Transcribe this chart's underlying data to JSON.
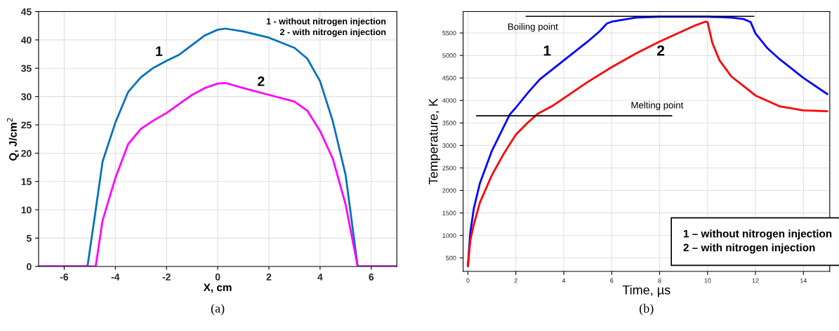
{
  "chart_data": [
    {
      "type": "line",
      "xlabel": "X, cm",
      "ylabel": "Q, J/cm$^{2}$",
      "xlim": [
        -7,
        7
      ],
      "ylim": [
        0,
        45
      ],
      "xticks": [
        -6,
        -4,
        -2,
        0,
        2,
        4,
        6
      ],
      "yticks": [
        0,
        5,
        10,
        15,
        20,
        25,
        30,
        35,
        40,
        45
      ],
      "grid": true,
      "series": [
        {
          "color": "#0072bd",
          "x": [
            -7,
            -5.09,
            -4.8,
            -4.5,
            -4,
            -3.5,
            -3,
            -2.5,
            -2,
            -1.5,
            -1,
            -0.5,
            0,
            0.3,
            1,
            2,
            3,
            3.5,
            4,
            4.5,
            5,
            5.47,
            7
          ],
          "values": [
            0,
            0,
            9.0,
            18.5,
            25.4,
            30.8,
            33.4,
            35.1,
            36.3,
            37.4,
            39.1,
            40.8,
            41.8,
            42.0,
            41.5,
            40.4,
            38.6,
            36.7,
            32.7,
            25.6,
            16.1,
            0,
            0
          ]
        },
        {
          "color": "#ff00ff",
          "x": [
            -7,
            -4.77,
            -4.5,
            -4,
            -3.5,
            -3,
            -2.5,
            -2,
            -1.5,
            -1,
            -0.5,
            0,
            0.3,
            1,
            2,
            3,
            3.5,
            4,
            4.5,
            5,
            5.47,
            7
          ],
          "values": [
            0,
            0,
            8.1,
            15.6,
            21.6,
            24.3,
            25.8,
            27.1,
            28.7,
            30.3,
            31.5,
            32.3,
            32.4,
            31.5,
            30.3,
            29.1,
            27.5,
            23.9,
            19.0,
            10.9,
            0,
            0
          ]
        }
      ],
      "annotations": [
        "1",
        "2",
        "1 - without nitrogen injection",
        "2 - with nitrogen injection",
        "(a)"
      ]
    },
    {
      "type": "line",
      "xlabel": "Time, µs",
      "ylabel": "Temperature, K",
      "xlim": [
        -0.2,
        15.1
      ],
      "ylim": [
        200,
        5975
      ],
      "xticks": [
        0,
        2,
        4,
        6,
        8,
        10,
        12,
        14
      ],
      "yticks": [
        500,
        1000,
        1500,
        2000,
        2500,
        3000,
        3500,
        4000,
        4500,
        5000,
        5500
      ],
      "grid": true,
      "series": [
        {
          "color": "#0000ff",
          "x": [
            0,
            0.1,
            0.25,
            0.5,
            1,
            1.5,
            1.75,
            2,
            2.5,
            3,
            4,
            5,
            5.5,
            5.8,
            6,
            7,
            8,
            9,
            10,
            11,
            11.5,
            11.8,
            12,
            12.5,
            13,
            14,
            15
          ],
          "values": [
            320,
            1070,
            1610,
            2160,
            2880,
            3420,
            3690,
            3840,
            4170,
            4470,
            4890,
            5310,
            5540,
            5710,
            5750,
            5840,
            5860,
            5860,
            5860,
            5840,
            5810,
            5740,
            5490,
            5160,
            4920,
            4500,
            4140
          ]
        },
        {
          "color": "#ff0000",
          "x": [
            0,
            0.1,
            0.25,
            0.5,
            1,
            1.5,
            2,
            2.5,
            2.9,
            3.5,
            4,
            5,
            6,
            7,
            8,
            9,
            9.5,
            9.9,
            10,
            10.2,
            10.5,
            11,
            11.5,
            12,
            13,
            14,
            15
          ],
          "values": [
            320,
            890,
            1250,
            1730,
            2340,
            2820,
            3240,
            3510,
            3700,
            3870,
            4050,
            4410,
            4740,
            5040,
            5310,
            5550,
            5670,
            5750,
            5740,
            5280,
            4890,
            4530,
            4320,
            4110,
            3870,
            3780,
            3760
          ]
        },
        {
          "color": "#000000",
          "x": [
            2.43,
            11.93
          ],
          "values": [
            5870,
            5870
          ]
        },
        {
          "color": "#000000",
          "x": [
            0.36,
            8.51
          ],
          "values": [
            3660,
            3660
          ]
        }
      ],
      "annotations": [
        "Boiling point",
        "Melting point",
        "1",
        "2",
        "1 – without nitrogen injection",
        "2 – with nitrogen injection",
        "(b)"
      ]
    }
  ]
}
